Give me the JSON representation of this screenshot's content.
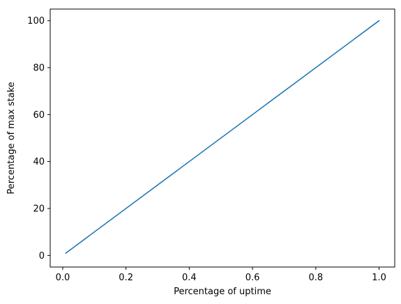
{
  "chart_data": {
    "type": "line",
    "title": "",
    "xlabel": "Percentage of uptime",
    "ylabel": "Percentage of max stake",
    "xlim": [
      -0.0395,
      1.0495
    ],
    "ylim": [
      -4.95,
      104.95
    ],
    "xticks": [
      0.0,
      0.2,
      0.4,
      0.6,
      0.8,
      1.0
    ],
    "xtick_labels": [
      "0.0",
      "0.2",
      "0.4",
      "0.6",
      "0.8",
      "1.0"
    ],
    "yticks": [
      0,
      20,
      40,
      60,
      80,
      100
    ],
    "ytick_labels": [
      "0",
      "20",
      "40",
      "60",
      "80",
      "100"
    ],
    "grid": false,
    "series": [
      {
        "color": "#1f77b4",
        "x": [
          0.01,
          1.0
        ],
        "y": [
          1,
          100
        ]
      }
    ]
  }
}
